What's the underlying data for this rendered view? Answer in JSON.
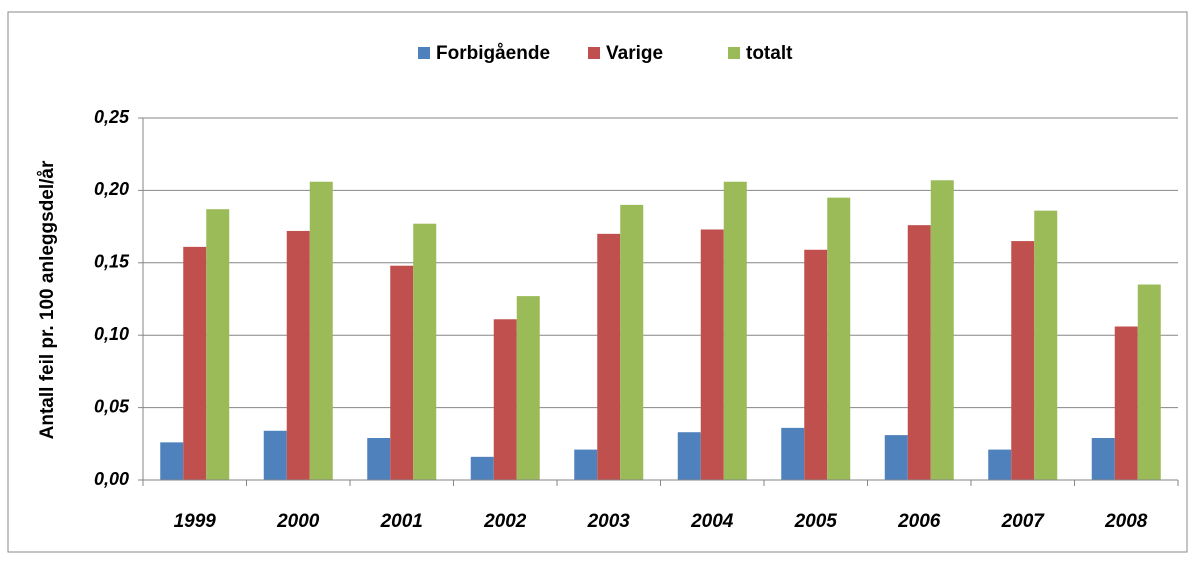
{
  "chart_data": {
    "type": "bar",
    "y_label": "Antall feil pr. 100 anleggsdel/år",
    "categories": [
      "1999",
      "2000",
      "2001",
      "2002",
      "2003",
      "2004",
      "2005",
      "2006",
      "2007",
      "2008"
    ],
    "series": [
      {
        "name": "Forbigående",
        "color": "#4f81bd",
        "values": [
          0.026,
          0.034,
          0.029,
          0.016,
          0.021,
          0.033,
          0.036,
          0.031,
          0.021,
          0.029
        ]
      },
      {
        "name": "Varige",
        "color": "#c0504d",
        "values": [
          0.161,
          0.172,
          0.148,
          0.111,
          0.17,
          0.173,
          0.159,
          0.176,
          0.165,
          0.106
        ]
      },
      {
        "name": "totalt",
        "color": "#9bbb59",
        "values": [
          0.187,
          0.206,
          0.177,
          0.127,
          0.19,
          0.206,
          0.195,
          0.207,
          0.186,
          0.135
        ]
      }
    ],
    "ylim": [
      0,
      0.25
    ],
    "yticks": [
      {
        "value": 0,
        "label": "0,00"
      },
      {
        "value": 0.05,
        "label": "0,05"
      },
      {
        "value": 0.1,
        "label": "0,10"
      },
      {
        "value": 0.15,
        "label": "0,15"
      },
      {
        "value": 0.2,
        "label": "0,20"
      },
      {
        "value": 0.25,
        "label": "0,25"
      }
    ],
    "grid": true,
    "legend": "top"
  }
}
